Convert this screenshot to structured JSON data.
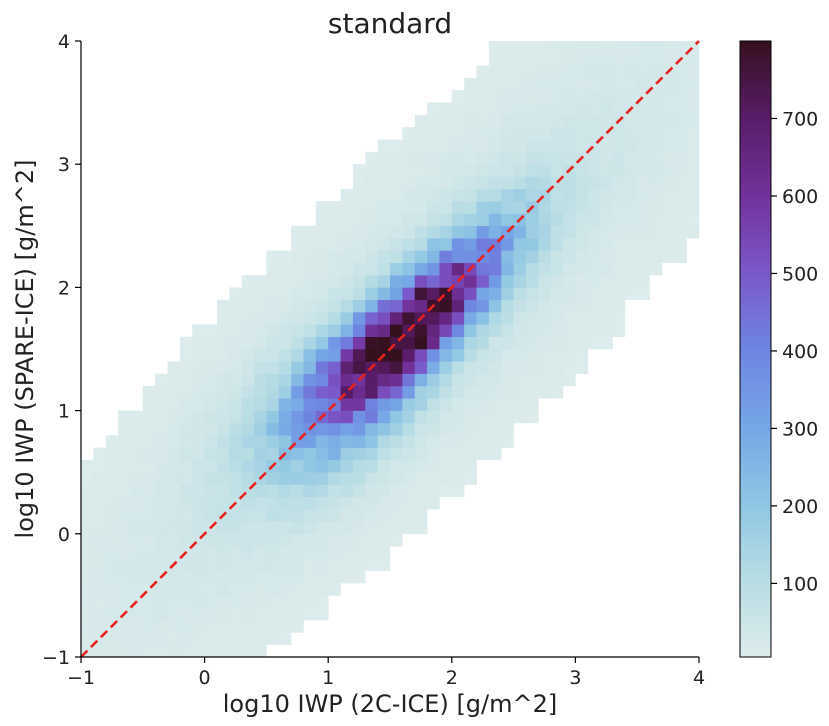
{
  "chart_data": {
    "type": "heatmap",
    "title": "standard",
    "xlabel": "log10 IWP (2C-ICE) [g/m^2]",
    "ylabel": "log10 IWP (SPARE-ICE) [g/m^2]",
    "xlim": [
      -1,
      4
    ],
    "ylim": [
      -1,
      4
    ],
    "x_ticks": [
      "−1",
      "0",
      "1",
      "2",
      "3",
      "4"
    ],
    "y_ticks": [
      "−1",
      "0",
      "1",
      "2",
      "3",
      "4"
    ],
    "x_tick_values": [
      -1,
      0,
      1,
      2,
      3,
      4
    ],
    "y_tick_values": [
      -1,
      0,
      1,
      2,
      3,
      4
    ],
    "bins": 50,
    "grid": false,
    "reference_line": {
      "slope": 1,
      "intercept": 0,
      "color": "#e8211b",
      "style": "dashed"
    },
    "colorbar": {
      "range": [
        5,
        800
      ],
      "ticks": [
        "100",
        "200",
        "300",
        "400",
        "500",
        "600",
        "700"
      ],
      "tick_values": [
        100,
        200,
        300,
        400,
        500,
        600,
        700
      ],
      "colors": [
        "#dcebeb",
        "#b8dde4",
        "#8fc6e3",
        "#75a6e6",
        "#6e85e1",
        "#7b57c9",
        "#72319a",
        "#591c68",
        "#35101f"
      ]
    },
    "density_model": {
      "peak_count": 800,
      "peak_x": 1.6,
      "peak_y": 1.6,
      "perpendicular_spread": 0.17,
      "along_diagonal_spread": 0.75,
      "min_count": 5
    }
  }
}
